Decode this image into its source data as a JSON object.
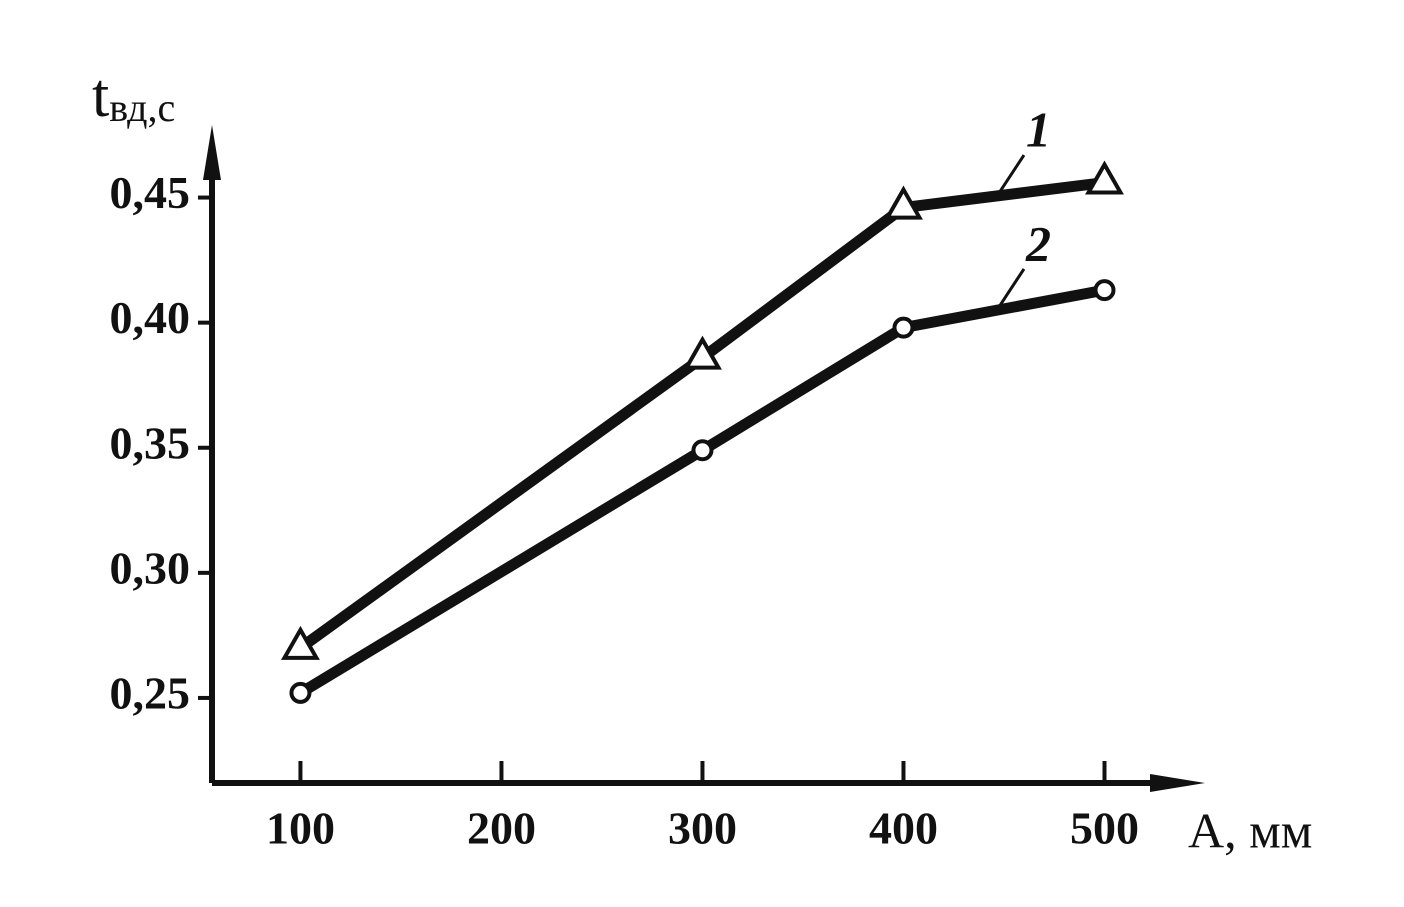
{
  "chart_data": {
    "type": "line",
    "y_label": {
      "main": "t",
      "sub": "вд,с"
    },
    "x_label": "A, мм",
    "x": [
      100,
      300,
      400,
      500
    ],
    "series": [
      {
        "name": "1",
        "color": "#111111",
        "marker": "triangle",
        "values": [
          0.27,
          0.386,
          0.446,
          0.456
        ]
      },
      {
        "name": "2",
        "color": "#111111",
        "marker": "circle",
        "values": [
          0.252,
          0.349,
          0.398,
          0.413
        ]
      }
    ],
    "xlim": [
      56,
      550
    ],
    "xticks": [
      100,
      200,
      300,
      400,
      500
    ],
    "ylim": [
      0.216,
      0.479
    ],
    "yticks": [
      {
        "value": 0.25,
        "label": "0,25"
      },
      {
        "value": 0.3,
        "label": "0,30"
      },
      {
        "value": 0.35,
        "label": "0,35"
      },
      {
        "value": 0.4,
        "label": "0,40"
      },
      {
        "value": 0.45,
        "label": "0,45"
      }
    ],
    "grid": false
  }
}
